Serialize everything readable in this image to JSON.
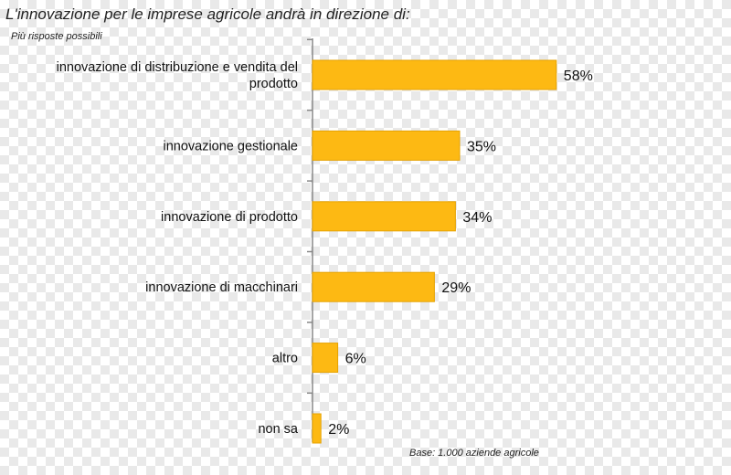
{
  "colors": {
    "bar": "#FDB913",
    "bar_border": "#E6A200",
    "axis": "#888888"
  },
  "chart_data": {
    "type": "bar",
    "orientation": "horizontal",
    "title": "L'innovazione per le imprese agricole andrà in direzione di:",
    "subtitle": "Più risposte possibili",
    "note": "Base: 1.000 aziende agricole",
    "categories": [
      [
        "innovazione di distribuzione e vendita del",
        "prodotto"
      ],
      [
        "innovazione gestionale"
      ],
      [
        "innovazione di prodotto"
      ],
      [
        "innovazione di macchinari"
      ],
      [
        "altro"
      ],
      [
        "non sa"
      ]
    ],
    "values": [
      58,
      35,
      34,
      29,
      6,
      2
    ],
    "value_labels": [
      "58%",
      "35%",
      "34%",
      "29%",
      "6%",
      "2%"
    ],
    "unit": "%",
    "xlim": [
      0,
      100
    ],
    "grid": false,
    "legend": "none"
  }
}
